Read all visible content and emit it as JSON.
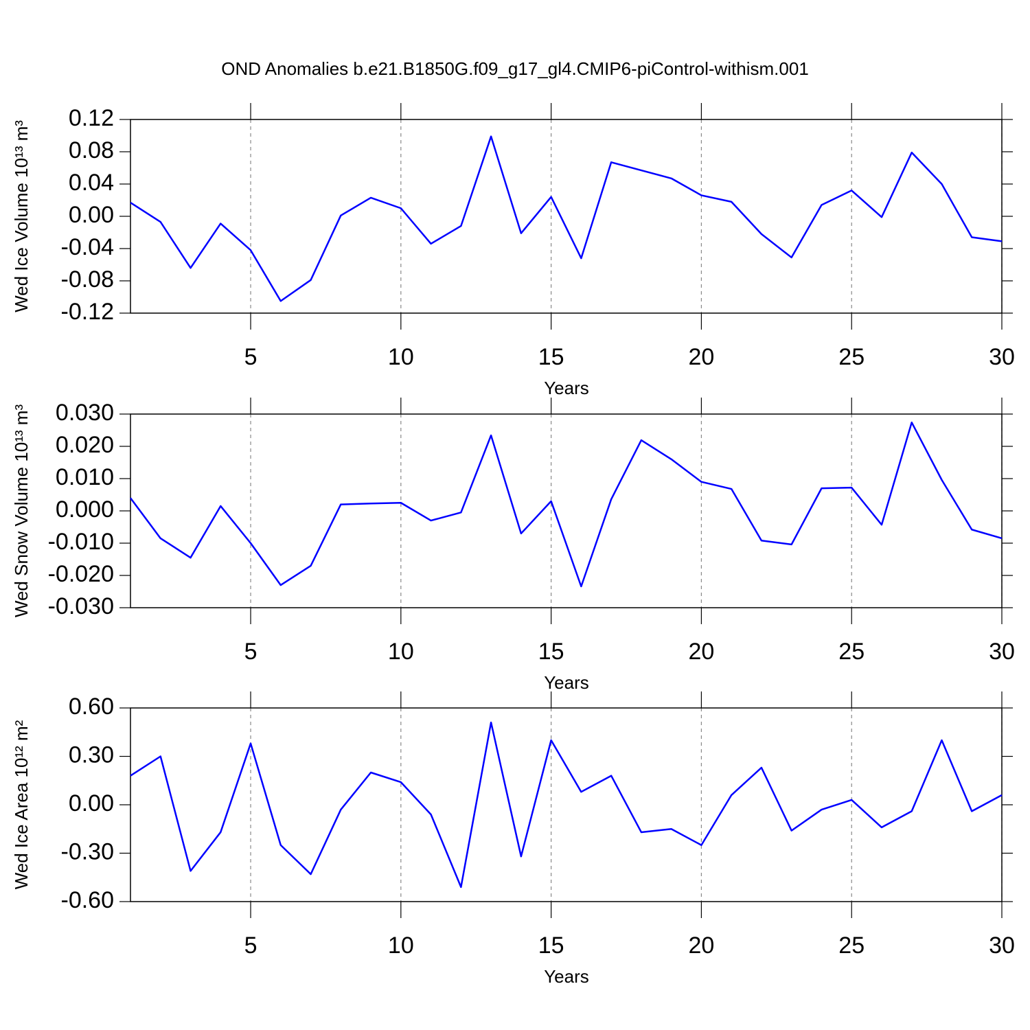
{
  "chart_data": [
    {
      "type": "line",
      "title": "OND Anomalies b.e21.B1850G.f09_g17_gl4.CMIP6-piControl-withism.001",
      "xlabel": "Years",
      "ylabel": "Wed Ice Volume 10¹³ m³",
      "color": "#0000ff",
      "x": [
        1,
        2,
        3,
        4,
        5,
        6,
        7,
        8,
        9,
        10,
        11,
        12,
        13,
        14,
        15,
        16,
        17,
        18,
        19,
        20,
        21,
        22,
        23,
        24,
        25,
        26,
        27,
        28,
        29,
        30
      ],
      "values": [
        0.017,
        -0.007,
        -0.064,
        -0.009,
        -0.042,
        -0.105,
        -0.079,
        0.001,
        0.023,
        0.01,
        -0.034,
        -0.012,
        0.099,
        -0.021,
        0.024,
        -0.052,
        0.067,
        0.057,
        0.047,
        0.026,
        0.018,
        -0.022,
        -0.051,
        0.014,
        0.032,
        -0.001,
        0.079,
        0.04,
        -0.026,
        -0.031
      ],
      "xlim": [
        1,
        30
      ],
      "xticks": [
        5,
        10,
        15,
        20,
        25,
        30
      ],
      "ylim": [
        -0.12,
        0.12
      ],
      "yticks": [
        0.12,
        0.08,
        0.04,
        {
          "value": 0,
          "label": "0.00"
        },
        -0.04,
        -0.08,
        -0.12
      ],
      "xgrid": true
    },
    {
      "type": "line",
      "xlabel": "Years",
      "ylabel": "Wed Snow Volume 10¹³ m³",
      "color": "#0000ff",
      "x": [
        1,
        2,
        3,
        4,
        5,
        6,
        7,
        8,
        9,
        10,
        11,
        12,
        13,
        14,
        15,
        16,
        17,
        18,
        19,
        20,
        21,
        22,
        23,
        24,
        25,
        26,
        27,
        28,
        29,
        30
      ],
      "values": [
        0.004,
        -0.0085,
        -0.0145,
        0.0015,
        -0.01,
        -0.023,
        -0.017,
        0.002,
        0.0023,
        0.0025,
        -0.003,
        -0.0005,
        0.0234,
        -0.007,
        0.003,
        -0.0234,
        0.0036,
        0.0219,
        0.016,
        0.009,
        0.0068,
        -0.0092,
        -0.0104,
        0.007,
        0.0072,
        -0.0043,
        0.0274,
        0.0096,
        -0.0058,
        -0.0085
      ],
      "xlim": [
        1,
        30
      ],
      "xticks": [
        5,
        10,
        15,
        20,
        25,
        30
      ],
      "ylim": [
        -0.03,
        0.03
      ],
      "yticks": [
        {
          "value": 0.03,
          "label": "0.030"
        },
        {
          "value": 0.02,
          "label": "0.020"
        },
        {
          "value": 0.01,
          "label": "0.010"
        },
        {
          "value": 0,
          "label": "0.000"
        },
        {
          "value": -0.01,
          "label": "-0.010"
        },
        {
          "value": -0.02,
          "label": "-0.020"
        },
        {
          "value": -0.03,
          "label": "-0.030"
        }
      ],
      "xgrid": true
    },
    {
      "type": "line",
      "xlabel": "Years",
      "ylabel": "Wed Ice Area 10¹² m²",
      "color": "#0000ff",
      "x": [
        1,
        2,
        3,
        4,
        5,
        6,
        7,
        8,
        9,
        10,
        11,
        12,
        13,
        14,
        15,
        16,
        17,
        18,
        19,
        20,
        21,
        22,
        23,
        24,
        25,
        26,
        27,
        28,
        29,
        30
      ],
      "values": [
        0.18,
        0.3,
        -0.41,
        -0.17,
        0.38,
        -0.25,
        -0.43,
        -0.03,
        0.2,
        0.14,
        -0.06,
        -0.51,
        0.51,
        -0.32,
        0.4,
        0.08,
        0.18,
        -0.17,
        -0.15,
        -0.25,
        0.06,
        0.23,
        -0.16,
        -0.03,
        0.03,
        -0.14,
        -0.04,
        0.4,
        -0.04,
        0.06
      ],
      "xlim": [
        1,
        30
      ],
      "xticks": [
        5,
        10,
        15,
        20,
        25,
        30
      ],
      "ylim": [
        -0.6,
        0.6
      ],
      "yticks": [
        {
          "value": 0.6,
          "label": "0.60"
        },
        {
          "value": 0.3,
          "label": "0.30"
        },
        {
          "value": 0,
          "label": "0.00"
        },
        {
          "value": -0.3,
          "label": "-0.30"
        },
        {
          "value": -0.6,
          "label": "-0.60"
        }
      ],
      "xgrid": true
    }
  ]
}
